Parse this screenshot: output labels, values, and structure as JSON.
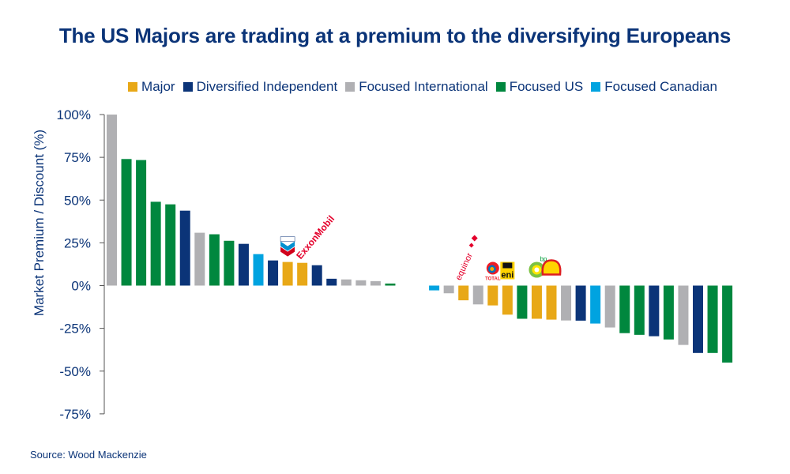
{
  "title": "The US Majors are trading at a premium to the diversifying Europeans",
  "source": "Source: Wood Mackenzie",
  "colors": {
    "Major": "#e8a817",
    "Diversified Independent": "#0b3478",
    "Focused International": "#b0b0b3",
    "Focused US": "#00873e",
    "Focused Canadian": "#00a3e0",
    "text": "#0b3478"
  },
  "legend": [
    {
      "label": "Major",
      "color": "#e8a817"
    },
    {
      "label": "Diversified Independent",
      "color": "#0b3478"
    },
    {
      "label": "Focused International",
      "color": "#b0b0b3"
    },
    {
      "label": "Focused US",
      "color": "#00873e"
    },
    {
      "label": "Focused Canadian",
      "color": "#00a3e0"
    }
  ],
  "chart_data": {
    "type": "bar",
    "title": "The US Majors are trading at a premium to the diversifying Europeans",
    "xlabel": "",
    "ylabel": "Market Premium / Discount (%)",
    "ylim": [
      -75,
      100
    ],
    "yticks": [
      100,
      75,
      50,
      25,
      0,
      -25,
      -50,
      -75
    ],
    "ytick_labels": [
      "100%",
      "75%",
      "50%",
      "25%",
      "0%",
      "-25%",
      "-50%",
      "-75%"
    ],
    "grid": false,
    "legend_position": "top",
    "bars": [
      {
        "value": 100,
        "group": "Focused International"
      },
      {
        "value": 74,
        "group": "Focused US"
      },
      {
        "value": 73.4,
        "group": "Focused US"
      },
      {
        "value": 49,
        "group": "Focused US"
      },
      {
        "value": 47.5,
        "group": "Focused US"
      },
      {
        "value": 43.8,
        "group": "Diversified Independent"
      },
      {
        "value": 30.9,
        "group": "Focused International"
      },
      {
        "value": 30,
        "group": "Focused US"
      },
      {
        "value": 26.2,
        "group": "Focused US"
      },
      {
        "value": 24.4,
        "group": "Diversified Independent"
      },
      {
        "value": 18.4,
        "group": "Focused Canadian"
      },
      {
        "value": 14.7,
        "group": "Diversified Independent"
      },
      {
        "value": 13.8,
        "group": "Major",
        "logo": "Chevron"
      },
      {
        "value": 13.3,
        "group": "Major",
        "logo": "ExxonMobil"
      },
      {
        "value": 11.9,
        "group": "Diversified Independent"
      },
      {
        "value": 4,
        "group": "Diversified Independent"
      },
      {
        "value": 3.6,
        "group": "Focused International"
      },
      {
        "value": 3.1,
        "group": "Focused International"
      },
      {
        "value": 2.6,
        "group": "Focused International"
      },
      {
        "value": 1.2,
        "group": "Focused US"
      },
      null,
      null,
      {
        "value": -2.8,
        "group": "Focused Canadian"
      },
      {
        "value": -4.5,
        "group": "Focused International"
      },
      {
        "value": -8.6,
        "group": "Major",
        "logo": "equinor"
      },
      {
        "value": -11,
        "group": "Focused International"
      },
      {
        "value": -11.6,
        "group": "Major",
        "logo": "TOTAL"
      },
      {
        "value": -17,
        "group": "Major",
        "logo": "eni"
      },
      {
        "value": -19.4,
        "group": "Focused US"
      },
      {
        "value": -19.4,
        "group": "Major",
        "logo": "bp"
      },
      {
        "value": -19.9,
        "group": "Major",
        "logo": "Shell"
      },
      {
        "value": -20.4,
        "group": "Focused International"
      },
      {
        "value": -20.5,
        "group": "Diversified Independent"
      },
      {
        "value": -22.2,
        "group": "Focused Canadian"
      },
      {
        "value": -24.5,
        "group": "Focused International"
      },
      {
        "value": -27.8,
        "group": "Focused US"
      },
      {
        "value": -28.8,
        "group": "Focused US"
      },
      {
        "value": -29.6,
        "group": "Diversified Independent"
      },
      {
        "value": -31.5,
        "group": "Focused US"
      },
      {
        "value": -34.7,
        "group": "Focused International"
      },
      {
        "value": -39.4,
        "group": "Diversified Independent"
      },
      {
        "value": -39.4,
        "group": "Focused US"
      },
      {
        "value": -45,
        "group": "Focused US"
      }
    ]
  }
}
